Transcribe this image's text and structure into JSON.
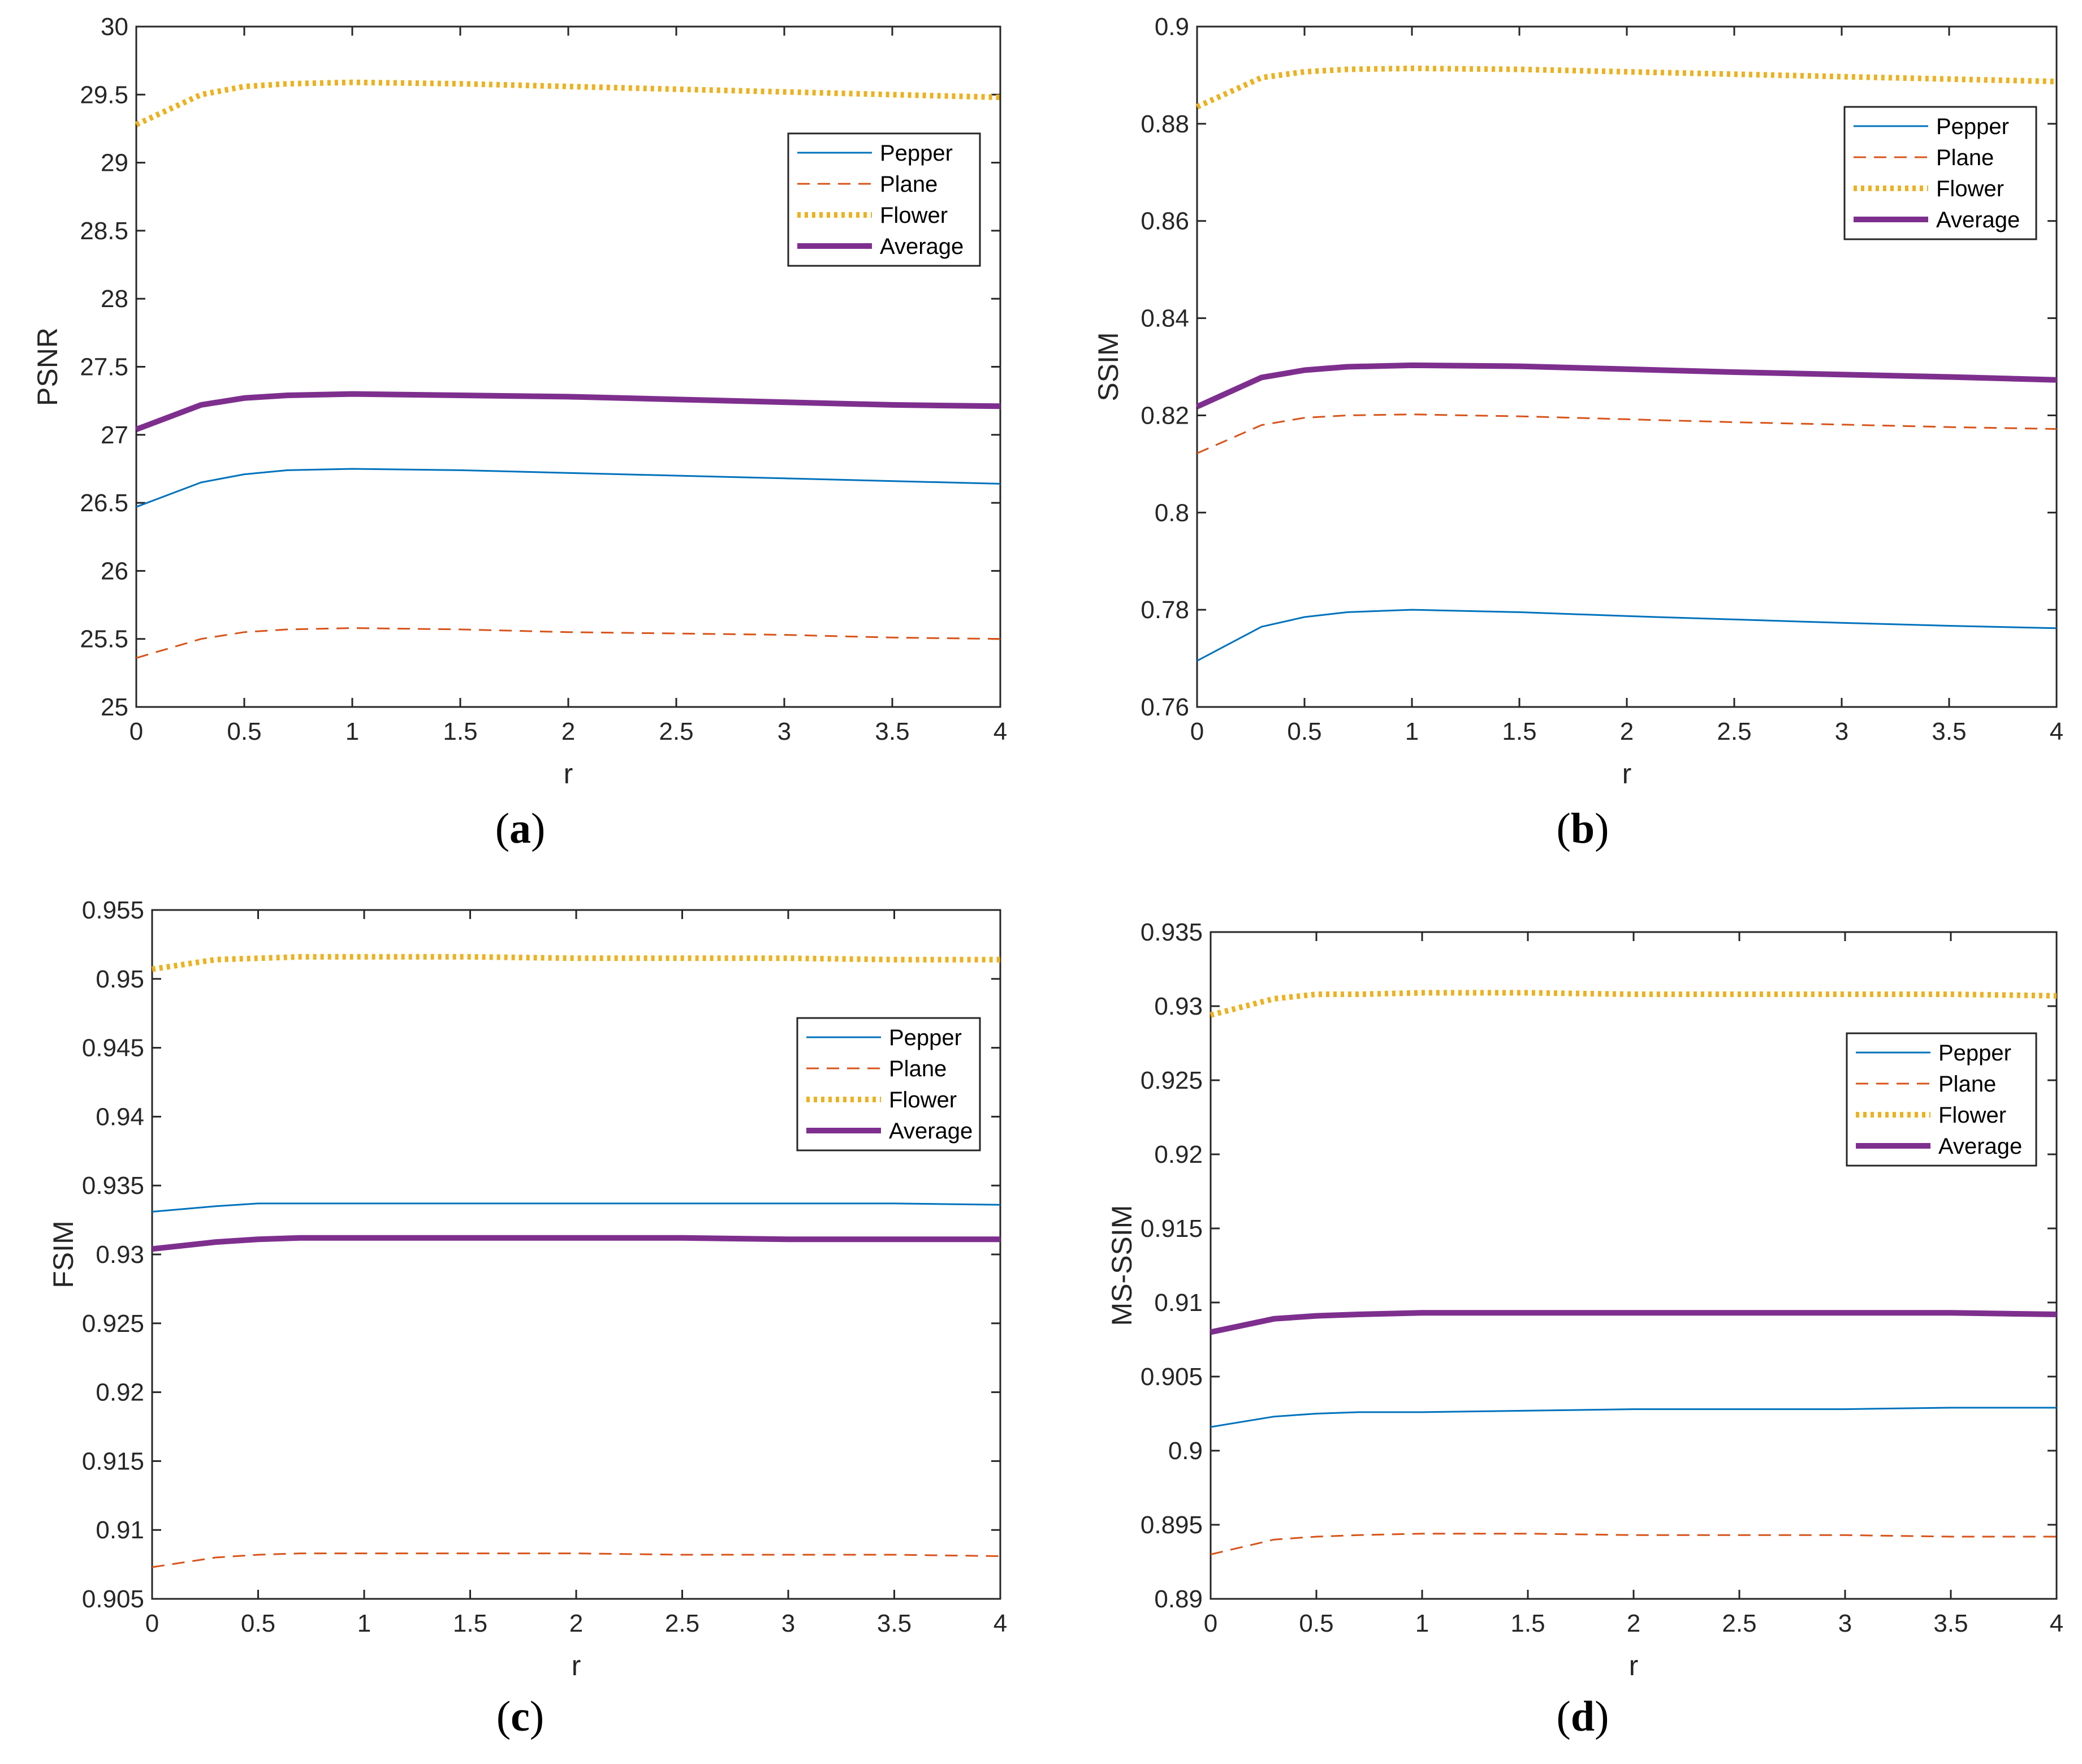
{
  "chart_data": [
    {
      "type": "line",
      "panel": "a",
      "caption_letter": "a",
      "xlabel": "r",
      "ylabel": "PSNR",
      "xlim": [
        0,
        4
      ],
      "ylim": [
        25,
        30
      ],
      "xticks": [
        0,
        0.5,
        1,
        1.5,
        2,
        2.5,
        3,
        3.5,
        4
      ],
      "xtick_labels": [
        "0",
        "0.5",
        "1",
        "1.5",
        "2",
        "2.5",
        "3",
        "3.5",
        "4"
      ],
      "yticks": [
        25,
        25.5,
        26,
        26.5,
        27,
        27.5,
        28,
        28.5,
        29,
        29.5,
        30
      ],
      "ytick_labels": [
        "25",
        "25.5",
        "26",
        "26.5",
        "27",
        "27.5",
        "28",
        "28.5",
        "29",
        "29.5",
        "30"
      ],
      "legend_position": "upper-right",
      "x": [
        0,
        0.3,
        0.5,
        0.7,
        1,
        1.5,
        2,
        2.5,
        3,
        3.5,
        4
      ],
      "series": [
        {
          "name": "Pepper",
          "values": [
            26.47,
            26.65,
            26.71,
            26.74,
            26.75,
            26.74,
            26.72,
            26.7,
            26.68,
            26.66,
            26.64
          ]
        },
        {
          "name": "Plane",
          "values": [
            25.36,
            25.5,
            25.55,
            25.57,
            25.58,
            25.57,
            25.55,
            25.54,
            25.53,
            25.51,
            25.5
          ]
        },
        {
          "name": "Flower",
          "values": [
            29.28,
            29.5,
            29.56,
            29.58,
            29.59,
            29.58,
            29.56,
            29.54,
            29.52,
            29.5,
            29.48
          ]
        },
        {
          "name": "Average",
          "values": [
            27.04,
            27.22,
            27.27,
            27.29,
            27.3,
            27.29,
            27.28,
            27.26,
            27.24,
            27.22,
            27.21
          ]
        }
      ]
    },
    {
      "type": "line",
      "panel": "b",
      "caption_letter": "b",
      "xlabel": "r",
      "ylabel": "SSIM",
      "xlim": [
        0,
        4
      ],
      "ylim": [
        0.76,
        0.9
      ],
      "xticks": [
        0,
        0.5,
        1,
        1.5,
        2,
        2.5,
        3,
        3.5,
        4
      ],
      "xtick_labels": [
        "0",
        "0.5",
        "1",
        "1.5",
        "2",
        "2.5",
        "3",
        "3.5",
        "4"
      ],
      "yticks": [
        0.76,
        0.78,
        0.8,
        0.82,
        0.84,
        0.86,
        0.88,
        0.9
      ],
      "ytick_labels": [
        "0.76",
        "0.78",
        "0.8",
        "0.82",
        "0.84",
        "0.86",
        "0.88",
        "0.9"
      ],
      "legend_position": "upper-right",
      "x": [
        0,
        0.3,
        0.5,
        0.7,
        1,
        1.5,
        2,
        2.5,
        3,
        3.5,
        4
      ],
      "series": [
        {
          "name": "Pepper",
          "values": [
            0.7695,
            0.7765,
            0.7785,
            0.7795,
            0.78,
            0.7795,
            0.7787,
            0.778,
            0.7773,
            0.7767,
            0.7762
          ]
        },
        {
          "name": "Plane",
          "values": [
            0.8122,
            0.818,
            0.8195,
            0.82,
            0.8202,
            0.8198,
            0.8192,
            0.8186,
            0.8181,
            0.8176,
            0.8172
          ]
        },
        {
          "name": "Flower",
          "values": [
            0.8835,
            0.8895,
            0.8907,
            0.8912,
            0.8914,
            0.8912,
            0.8907,
            0.8902,
            0.8897,
            0.8892,
            0.8887
          ]
        },
        {
          "name": "Average",
          "values": [
            0.8218,
            0.8278,
            0.8293,
            0.83,
            0.8303,
            0.8301,
            0.8295,
            0.8289,
            0.8284,
            0.8279,
            0.8273
          ]
        }
      ]
    },
    {
      "type": "line",
      "panel": "c",
      "caption_letter": "c",
      "xlabel": "r",
      "ylabel": "FSIM",
      "xlim": [
        0,
        4
      ],
      "ylim": [
        0.905,
        0.955
      ],
      "xticks": [
        0,
        0.5,
        1,
        1.5,
        2,
        2.5,
        3,
        3.5,
        4
      ],
      "xtick_labels": [
        "0",
        "0.5",
        "1",
        "1.5",
        "2",
        "2.5",
        "3",
        "3.5",
        "4"
      ],
      "yticks": [
        0.905,
        0.91,
        0.915,
        0.92,
        0.925,
        0.93,
        0.935,
        0.94,
        0.945,
        0.95,
        0.955
      ],
      "ytick_labels": [
        "0.905",
        "0.91",
        "0.915",
        "0.92",
        "0.925",
        "0.93",
        "0.935",
        "0.94",
        "0.945",
        "0.95",
        "0.955"
      ],
      "legend_position": "upper-right",
      "x": [
        0,
        0.3,
        0.5,
        0.7,
        1,
        1.5,
        2,
        2.5,
        3,
        3.5,
        4
      ],
      "series": [
        {
          "name": "Pepper",
          "values": [
            0.9331,
            0.9335,
            0.9337,
            0.9337,
            0.9337,
            0.9337,
            0.9337,
            0.9337,
            0.9337,
            0.9337,
            0.9336
          ]
        },
        {
          "name": "Plane",
          "values": [
            0.9073,
            0.908,
            0.9082,
            0.9083,
            0.9083,
            0.9083,
            0.9083,
            0.9082,
            0.9082,
            0.9082,
            0.9081
          ]
        },
        {
          "name": "Flower",
          "values": [
            0.9507,
            0.9514,
            0.9515,
            0.9516,
            0.9516,
            0.9516,
            0.9515,
            0.9515,
            0.9515,
            0.9514,
            0.9514
          ]
        },
        {
          "name": "Average",
          "values": [
            0.9304,
            0.9309,
            0.9311,
            0.9312,
            0.9312,
            0.9312,
            0.9312,
            0.9312,
            0.9311,
            0.9311,
            0.9311
          ]
        }
      ]
    },
    {
      "type": "line",
      "panel": "d",
      "caption_letter": "d",
      "xlabel": "r",
      "ylabel": "MS-SSIM",
      "xlim": [
        0,
        4
      ],
      "ylim": [
        0.89,
        0.935
      ],
      "xticks": [
        0,
        0.5,
        1,
        1.5,
        2,
        2.5,
        3,
        3.5,
        4
      ],
      "xtick_labels": [
        "0",
        "0.5",
        "1",
        "1.5",
        "2",
        "2.5",
        "3",
        "3.5",
        "4"
      ],
      "yticks": [
        0.89,
        0.895,
        0.9,
        0.905,
        0.91,
        0.915,
        0.92,
        0.925,
        0.93,
        0.935
      ],
      "ytick_labels": [
        "0.89",
        "0.895",
        "0.9",
        "0.905",
        "0.91",
        "0.915",
        "0.92",
        "0.925",
        "0.93",
        "0.935"
      ],
      "legend_position": "upper-right",
      "x": [
        0,
        0.3,
        0.5,
        0.7,
        1,
        1.5,
        2,
        2.5,
        3,
        3.5,
        4
      ],
      "series": [
        {
          "name": "Pepper",
          "values": [
            0.9016,
            0.9023,
            0.9025,
            0.9026,
            0.9026,
            0.9027,
            0.9028,
            0.9028,
            0.9028,
            0.9029,
            0.9029
          ]
        },
        {
          "name": "Plane",
          "values": [
            0.893,
            0.894,
            0.8942,
            0.8943,
            0.8944,
            0.8944,
            0.8943,
            0.8943,
            0.8943,
            0.8942,
            0.8942
          ]
        },
        {
          "name": "Flower",
          "values": [
            0.9294,
            0.9305,
            0.9308,
            0.9308,
            0.9309,
            0.9309,
            0.9308,
            0.9308,
            0.9308,
            0.9308,
            0.9307
          ]
        },
        {
          "name": "Average",
          "values": [
            0.908,
            0.9089,
            0.9091,
            0.9092,
            0.9093,
            0.9093,
            0.9093,
            0.9093,
            0.9093,
            0.9093,
            0.9092
          ]
        }
      ]
    }
  ],
  "series_styles": {
    "Pepper": {
      "color": "#0072bd",
      "style": "solid"
    },
    "Plane": {
      "color": "#d95319",
      "style": "dashed"
    },
    "Flower": {
      "color": "#edb120",
      "style": "dotted"
    },
    "Average": {
      "color": "#7e2f8e",
      "style": "thick-solid"
    }
  }
}
